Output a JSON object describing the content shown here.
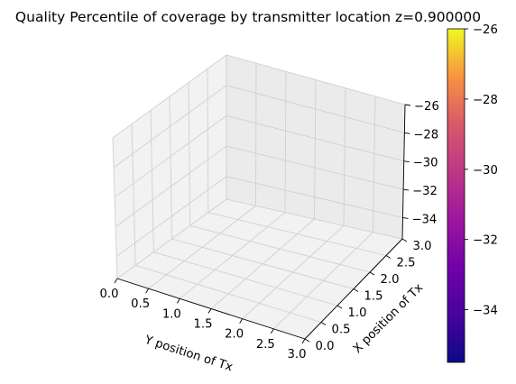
{
  "chart_data": {
    "type": "surface3d",
    "title": "Quality Percentile of coverage by transmitter location z=0.900000",
    "xlabel": "X position of Tx",
    "ylabel": "Y position of Tx",
    "zlabel": "",
    "x_ticks": [
      "0.0",
      "0.5",
      "1.0",
      "1.5",
      "2.0",
      "2.5",
      "3.0"
    ],
    "y_ticks": [
      "0.0",
      "0.5",
      "1.0",
      "1.5",
      "2.0",
      "2.5",
      "3.0"
    ],
    "z_ticks": [
      "−34",
      "−32",
      "−30",
      "−28",
      "−26"
    ],
    "xlim": [
      0,
      3
    ],
    "ylim": [
      0,
      3
    ],
    "zlim": [
      -35.5,
      -26
    ],
    "grid": true,
    "data_points": [],
    "colorbar": {
      "colormap": "plasma",
      "range": [
        -35.5,
        -26
      ],
      "ticks": [
        "−34",
        "−32",
        "−30",
        "−28",
        "−26"
      ]
    }
  }
}
